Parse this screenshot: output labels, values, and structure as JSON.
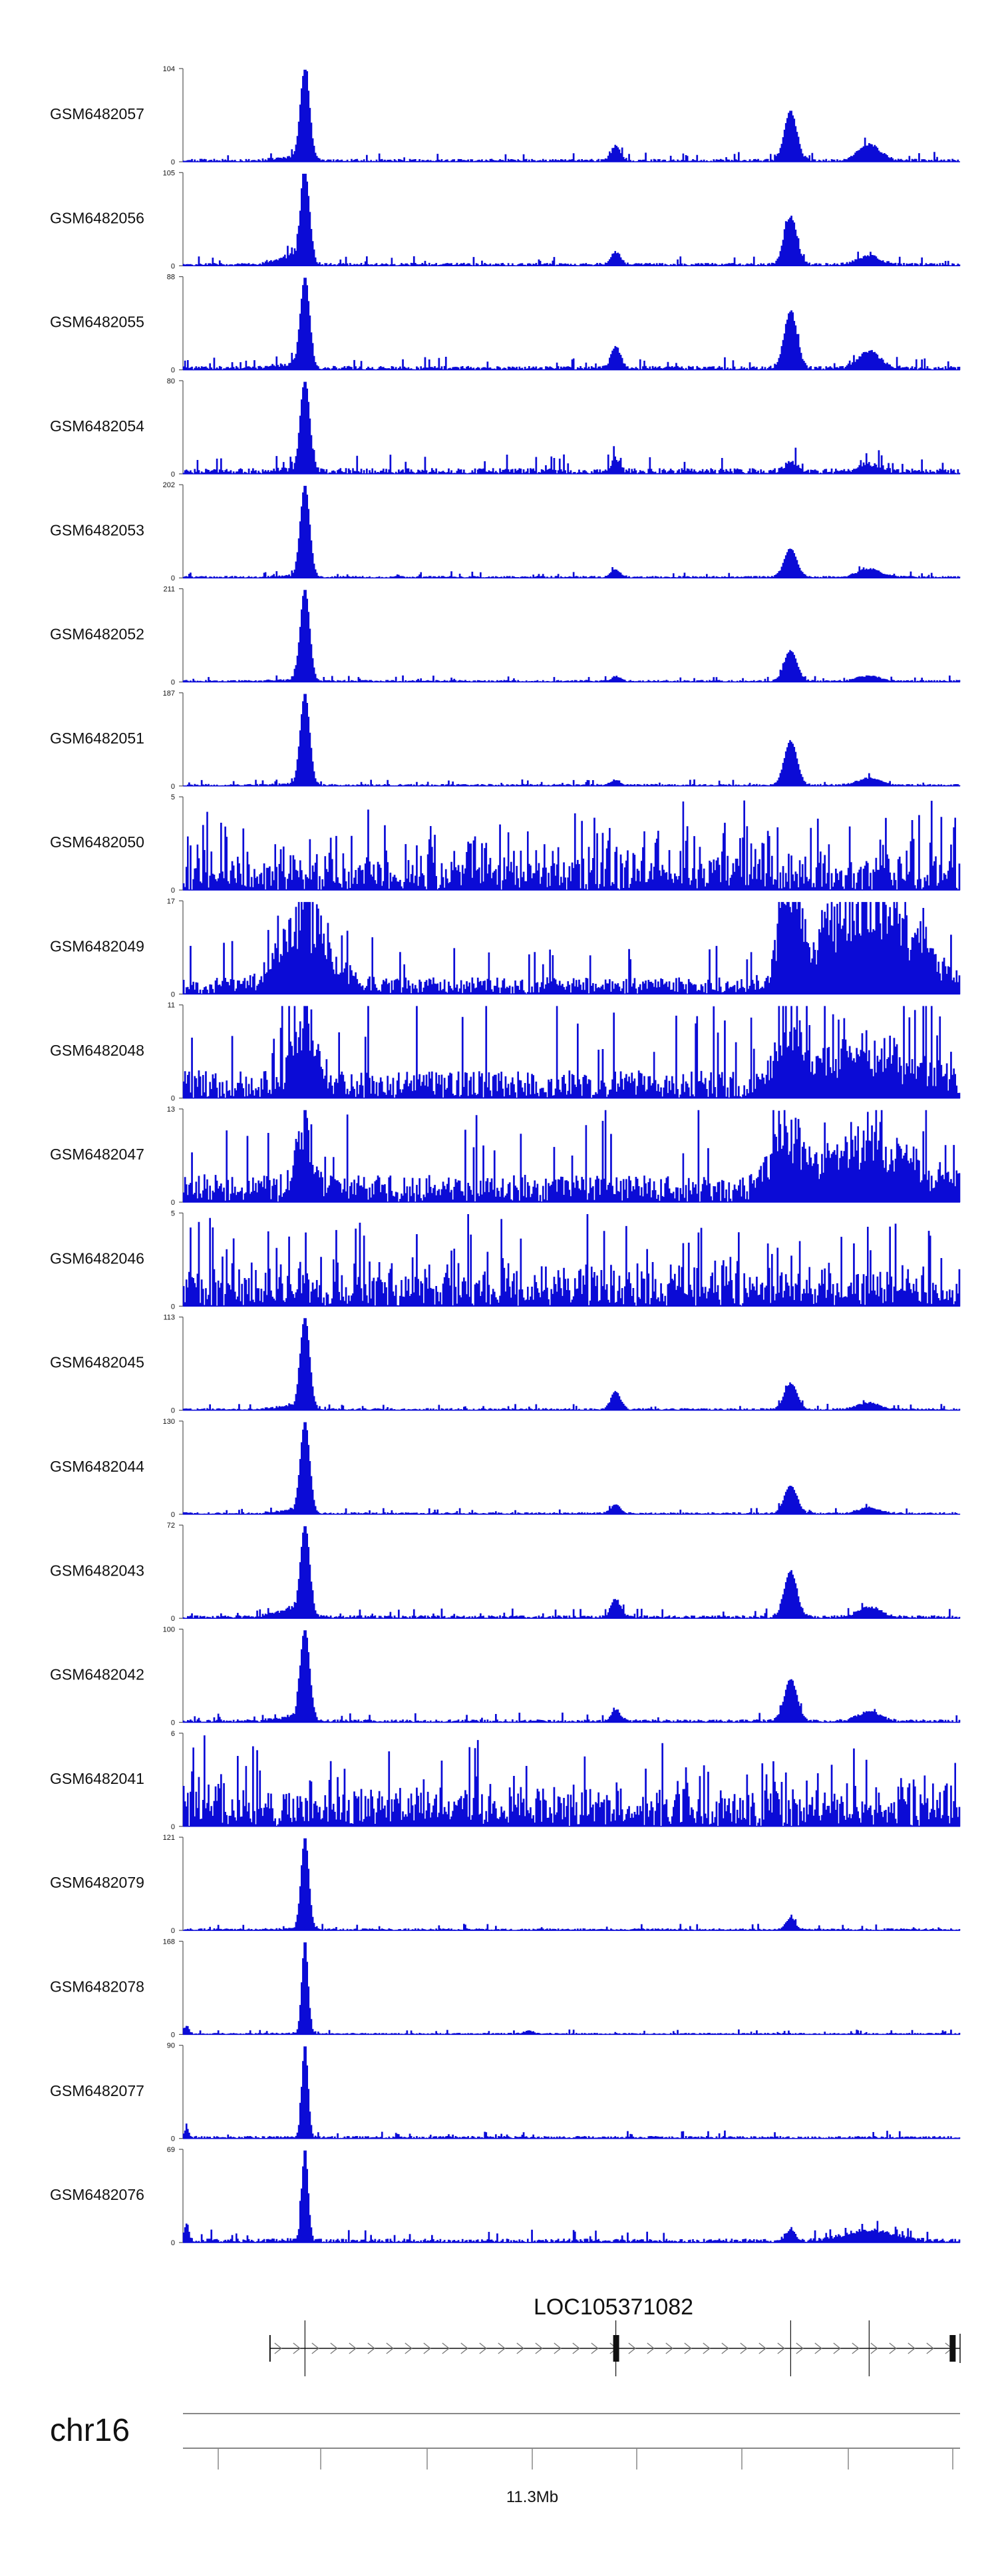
{
  "colors": {
    "signal": "#0b0bd6",
    "axis": "#555555",
    "gene": "#111111",
    "ruler": "#888888"
  },
  "chart_data": {
    "type": "area",
    "x_domain": [
      0,
      1000
    ],
    "gene": {
      "name": "LOC105371082",
      "strand": "+",
      "span": [
        112,
        1000
      ],
      "exons": [
        557,
        990
      ]
    },
    "chromosome": {
      "name": "chr16",
      "locus_label": "11.3Mb"
    },
    "peak_positions": [
      157,
      557,
      782,
      883
    ],
    "tracks": [
      {
        "name": "GSM6482057",
        "ymax": "104",
        "max": 104,
        "profile": "peaked",
        "peaks": [
          [
            157,
            104,
            6
          ],
          [
            557,
            16,
            6
          ],
          [
            782,
            55,
            8
          ],
          [
            883,
            18,
            14
          ]
        ],
        "shoulder": 0.12,
        "noise": 0.03
      },
      {
        "name": "GSM6482056",
        "ymax": "105",
        "max": 105,
        "profile": "peaked",
        "peaks": [
          [
            157,
            105,
            6
          ],
          [
            557,
            14,
            6
          ],
          [
            782,
            55,
            8
          ],
          [
            883,
            10,
            14
          ]
        ],
        "shoulder": 0.34,
        "noise": 0.03
      },
      {
        "name": "GSM6482055",
        "ymax": "88",
        "max": 88,
        "profile": "peaked",
        "peaks": [
          [
            157,
            88,
            6
          ],
          [
            557,
            20,
            6
          ],
          [
            782,
            55,
            8
          ],
          [
            883,
            16,
            14
          ]
        ],
        "shoulder": 0.18,
        "noise": 0.04
      },
      {
        "name": "GSM6482054",
        "ymax": "80",
        "max": 80,
        "profile": "peaked",
        "peaks": [
          [
            157,
            80,
            6
          ],
          [
            557,
            12,
            5
          ],
          [
            782,
            8,
            8
          ],
          [
            883,
            6,
            14
          ]
        ],
        "shoulder": 0.04,
        "noise": 0.06
      },
      {
        "name": "GSM6482053",
        "ymax": "202",
        "max": 202,
        "profile": "peaked",
        "peaks": [
          [
            157,
            202,
            6
          ],
          [
            557,
            16,
            6
          ],
          [
            782,
            62,
            8
          ],
          [
            883,
            18,
            14
          ]
        ],
        "shoulder": 0.06,
        "noise": 0.02
      },
      {
        "name": "GSM6482052",
        "ymax": "211",
        "max": 211,
        "profile": "peaked",
        "peaks": [
          [
            157,
            211,
            6
          ],
          [
            557,
            10,
            6
          ],
          [
            782,
            70,
            8
          ],
          [
            883,
            12,
            14
          ]
        ],
        "shoulder": 0.05,
        "noise": 0.02
      },
      {
        "name": "GSM6482051",
        "ymax": "187",
        "max": 187,
        "profile": "peaked",
        "peaks": [
          [
            157,
            187,
            6
          ],
          [
            557,
            10,
            6
          ],
          [
            782,
            90,
            8
          ],
          [
            883,
            14,
            14
          ]
        ],
        "shoulder": 0.04,
        "noise": 0.02
      },
      {
        "name": "GSM6482050",
        "ymax": "5",
        "max": 5,
        "profile": "noise",
        "peaks": [],
        "shoulder": 0,
        "noise": 0.55
      },
      {
        "name": "GSM6482049",
        "ymax": "17",
        "max": 17,
        "profile": "broad",
        "peaks": [
          [
            157,
            40,
            30
          ],
          [
            782,
            100,
            12
          ],
          [
            883,
            55,
            55
          ]
        ],
        "shoulder": 0,
        "noise": 0.18
      },
      {
        "name": "GSM6482048",
        "ymax": "11",
        "max": 11,
        "profile": "broad",
        "peaks": [
          [
            157,
            90,
            14
          ],
          [
            782,
            100,
            16
          ],
          [
            883,
            45,
            55
          ]
        ],
        "shoulder": 0,
        "noise": 0.3
      },
      {
        "name": "GSM6482047",
        "ymax": "13",
        "max": 13,
        "profile": "broad",
        "peaks": [
          [
            157,
            100,
            10
          ],
          [
            782,
            85,
            20
          ],
          [
            883,
            75,
            55
          ]
        ],
        "shoulder": 0,
        "noise": 0.3
      },
      {
        "name": "GSM6482046",
        "ymax": "5",
        "max": 5,
        "profile": "noise",
        "peaks": [],
        "shoulder": 0,
        "noise": 0.6
      },
      {
        "name": "GSM6482045",
        "ymax": "113",
        "max": 113,
        "profile": "peaked",
        "peaks": [
          [
            157,
            113,
            6
          ],
          [
            557,
            22,
            6
          ],
          [
            782,
            32,
            8
          ],
          [
            883,
            8,
            14
          ]
        ],
        "shoulder": 0.14,
        "noise": 0.02
      },
      {
        "name": "GSM6482044",
        "ymax": "130",
        "max": 130,
        "profile": "peaked",
        "peaks": [
          [
            157,
            130,
            6
          ],
          [
            557,
            12,
            6
          ],
          [
            782,
            40,
            8
          ],
          [
            883,
            8,
            14
          ]
        ],
        "shoulder": 0.12,
        "noise": 0.02
      },
      {
        "name": "GSM6482043",
        "ymax": "72",
        "max": 72,
        "profile": "peaked",
        "peaks": [
          [
            157,
            72,
            6
          ],
          [
            557,
            14,
            6
          ],
          [
            782,
            36,
            8
          ],
          [
            883,
            8,
            14
          ]
        ],
        "shoulder": 0.3,
        "noise": 0.03
      },
      {
        "name": "GSM6482042",
        "ymax": "100",
        "max": 100,
        "profile": "peaked",
        "peaks": [
          [
            157,
            100,
            6
          ],
          [
            557,
            12,
            6
          ],
          [
            782,
            45,
            8
          ],
          [
            883,
            10,
            14
          ]
        ],
        "shoulder": 0.16,
        "noise": 0.03
      },
      {
        "name": "GSM6482041",
        "ymax": "6",
        "max": 6,
        "profile": "noise",
        "peaks": [],
        "shoulder": 0,
        "noise": 0.55
      },
      {
        "name": "GSM6482079",
        "ymax": "121",
        "max": 121,
        "profile": "peaked",
        "peaks": [
          [
            157,
            121,
            5
          ],
          [
            782,
            15,
            6
          ]
        ],
        "shoulder": 0.03,
        "noise": 0.02
      },
      {
        "name": "GSM6482078",
        "ymax": "168",
        "max": 168,
        "profile": "peaked",
        "peaks": [
          [
            157,
            168,
            4
          ],
          [
            5,
            14,
            3
          ],
          [
            445,
            5,
            6
          ]
        ],
        "shoulder": 0.02,
        "noise": 0.015
      },
      {
        "name": "GSM6482077",
        "ymax": "90",
        "max": 90,
        "profile": "peaked",
        "peaks": [
          [
            157,
            90,
            4
          ],
          [
            5,
            8,
            3
          ]
        ],
        "shoulder": 0.01,
        "noise": 0.025
      },
      {
        "name": "GSM6482076",
        "ymax": "69",
        "max": 69,
        "profile": "peaked",
        "peaks": [
          [
            157,
            69,
            4
          ],
          [
            5,
            12,
            3
          ],
          [
            782,
            9,
            6
          ],
          [
            883,
            8,
            30
          ]
        ],
        "shoulder": 0.02,
        "noise": 0.04
      }
    ]
  }
}
